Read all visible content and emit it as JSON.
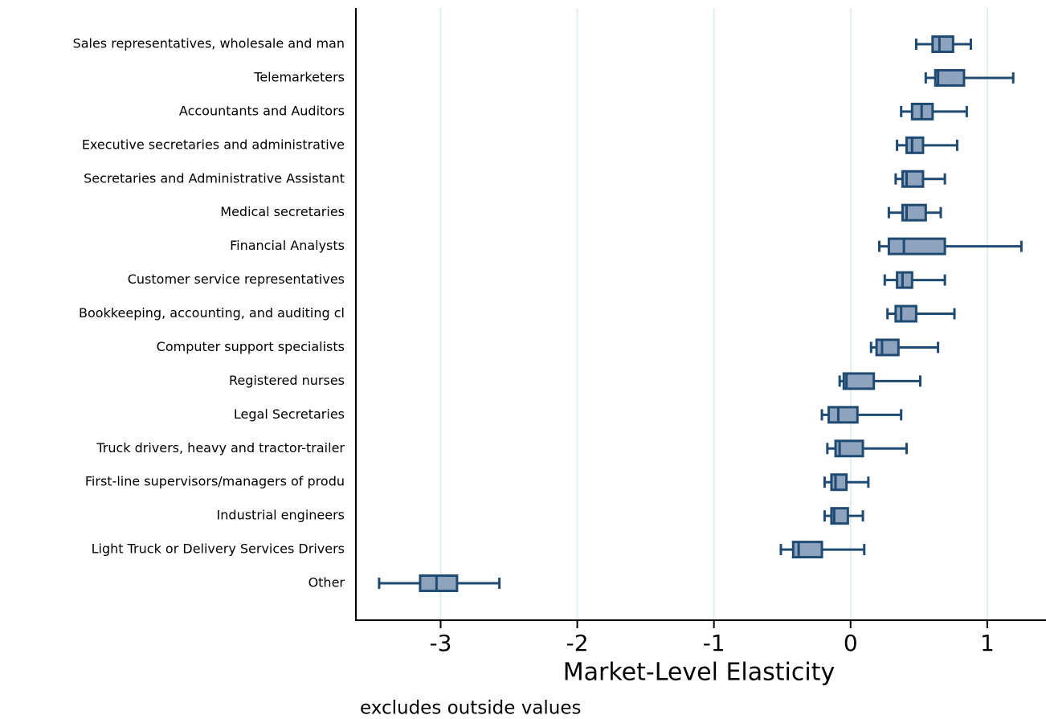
{
  "chart_data": {
    "type": "boxplot",
    "orientation": "horizontal",
    "xlabel": "Market-Level Elasticity",
    "note": "excludes outside values",
    "categories": [
      "Sales representatives, wholesale and man",
      "Telemarketers",
      "Accountants and Auditors",
      "Executive secretaries and administrative",
      "Secretaries and Administrative Assistant",
      "Medical secretaries",
      "Financial Analysts",
      "Customer service representatives",
      "Bookkeeping, accounting, and auditing cl",
      "Computer support specialists",
      "Registered nurses",
      "Legal Secretaries",
      "Truck drivers, heavy and tractor-trailer",
      "First-line supervisors/managers of produ",
      "Industrial engineers",
      "Light Truck or Delivery Services Drivers",
      "Other"
    ],
    "whislo": [
      0.48,
      0.55,
      0.37,
      0.34,
      0.33,
      0.28,
      0.21,
      0.25,
      0.27,
      0.15,
      -0.08,
      -0.21,
      -0.17,
      -0.19,
      -0.19,
      -0.51,
      -3.45
    ],
    "q1": [
      0.6,
      0.62,
      0.45,
      0.41,
      0.38,
      0.38,
      0.28,
      0.34,
      0.33,
      0.19,
      -0.05,
      -0.16,
      -0.11,
      -0.14,
      -0.14,
      -0.42,
      -3.15
    ],
    "med": [
      0.65,
      0.64,
      0.52,
      0.45,
      0.41,
      0.41,
      0.39,
      0.38,
      0.37,
      0.23,
      -0.03,
      -0.09,
      -0.08,
      -0.11,
      -0.12,
      -0.38,
      -3.03
    ],
    "q3": [
      0.75,
      0.83,
      0.6,
      0.53,
      0.53,
      0.55,
      0.69,
      0.45,
      0.48,
      0.35,
      0.17,
      0.05,
      0.09,
      -0.03,
      -0.02,
      -0.21,
      -2.88
    ],
    "whishi": [
      0.88,
      1.19,
      0.85,
      0.78,
      0.69,
      0.66,
      1.25,
      0.69,
      0.76,
      0.64,
      0.51,
      0.37,
      0.41,
      0.13,
      0.09,
      0.1,
      -2.57
    ],
    "color": "#1f4a72",
    "fill": "#8ea3bd",
    "xlim": [
      -3.62,
      1.43
    ],
    "xticks": [
      -3,
      -2,
      -1,
      0,
      1
    ],
    "grid": true
  }
}
